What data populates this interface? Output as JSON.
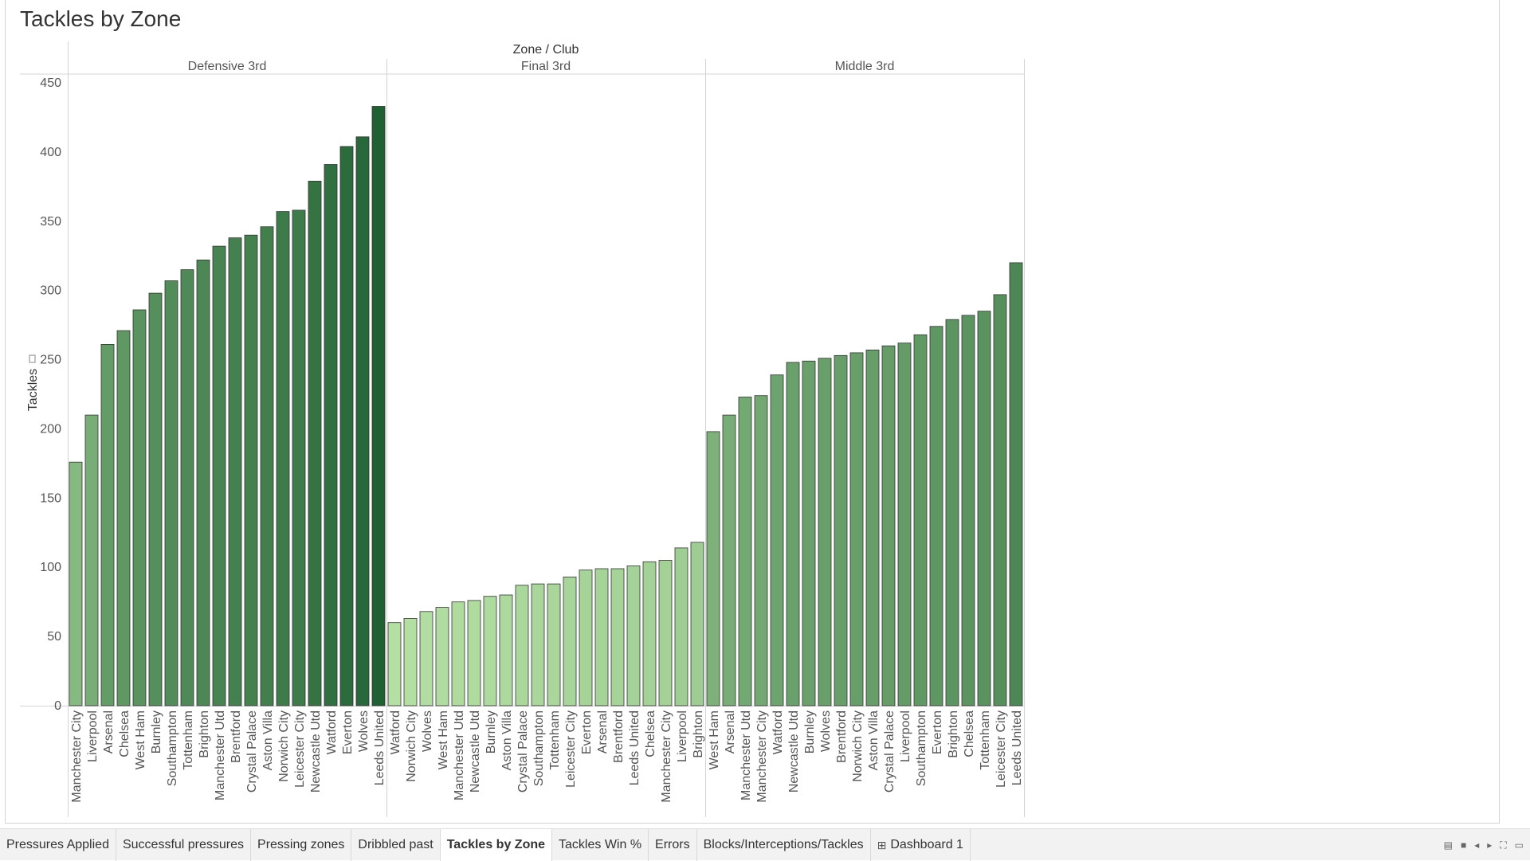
{
  "worksheet_title": "Tackles by Zone",
  "tabs": [
    {
      "label": "Pressures Applied",
      "active": false
    },
    {
      "label": "Successful pressures",
      "active": false
    },
    {
      "label": "Pressing zones",
      "active": false
    },
    {
      "label": "Dribbled past",
      "active": false
    },
    {
      "label": "Tackles by Zone",
      "active": true
    },
    {
      "label": "Tackles Win  %",
      "active": false
    },
    {
      "label": "Errors",
      "active": false
    },
    {
      "label": "Blocks/Interceptions/Tackles",
      "active": false
    },
    {
      "label": "Dashboard 1",
      "active": false,
      "icon": "dashboard-grid-icon"
    }
  ],
  "nav_icons": [
    "grid-view-icon",
    "filmstrip-view-icon",
    "previous-sheet-icon",
    "next-sheet-icon",
    "fit-screen-icon",
    "presentation-mode-icon"
  ],
  "colors": {
    "color_low": "#b5e0a4",
    "color_high": "#1f6133",
    "bar_border": "#333333",
    "gridline": "#d4d4d4"
  },
  "chart_data": {
    "type": "bar",
    "title": "Tackles by Zone",
    "column_header": "Zone  /  Club",
    "ylabel": "Tackles",
    "ylim": [
      0,
      450
    ],
    "yticks": [
      0,
      50,
      100,
      150,
      200,
      250,
      300,
      350,
      400,
      450
    ],
    "grid": false,
    "color_encoding": "value",
    "panes": [
      {
        "zone": "Defensive 3rd",
        "categories": [
          "Manchester City",
          "Liverpool",
          "Arsenal",
          "Chelsea",
          "West Ham",
          "Burnley",
          "Southampton",
          "Tottenham",
          "Brighton",
          "Manchester Utd",
          "Brentford",
          "Crystal Palace",
          "Aston Villa",
          "Norwich City",
          "Leicester City",
          "Newcastle Utd",
          "Watford",
          "Everton",
          "Wolves",
          "Leeds United"
        ],
        "values": [
          176,
          210,
          261,
          271,
          286,
          298,
          307,
          315,
          322,
          332,
          338,
          340,
          346,
          357,
          358,
          379,
          391,
          404,
          411,
          433
        ]
      },
      {
        "zone": "Final 3rd",
        "categories": [
          "Watford",
          "Norwich City",
          "Wolves",
          "West Ham",
          "Manchester Utd",
          "Newcastle Utd",
          "Burnley",
          "Aston Villa",
          "Crystal Palace",
          "Southampton",
          "Tottenham",
          "Leicester City",
          "Everton",
          "Arsenal",
          "Brentford",
          "Leeds United",
          "Chelsea",
          "Manchester City",
          "Liverpool",
          "Brighton"
        ],
        "values": [
          60,
          63,
          68,
          71,
          75,
          76,
          79,
          80,
          87,
          88,
          88,
          93,
          98,
          99,
          99,
          101,
          104,
          105,
          114,
          118
        ]
      },
      {
        "zone": "Middle 3rd",
        "categories": [
          "West Ham",
          "Arsenal",
          "Manchester Utd",
          "Manchester City",
          "Watford",
          "Newcastle Utd",
          "Burnley",
          "Wolves",
          "Brentford",
          "Norwich City",
          "Aston Villa",
          "Crystal Palace",
          "Liverpool",
          "Southampton",
          "Everton",
          "Brighton",
          "Chelsea",
          "Tottenham",
          "Leicester City",
          "Leeds United"
        ],
        "values": [
          198,
          210,
          223,
          224,
          239,
          248,
          249,
          251,
          253,
          255,
          257,
          260,
          262,
          268,
          274,
          279,
          282,
          285,
          297,
          320
        ]
      }
    ]
  }
}
